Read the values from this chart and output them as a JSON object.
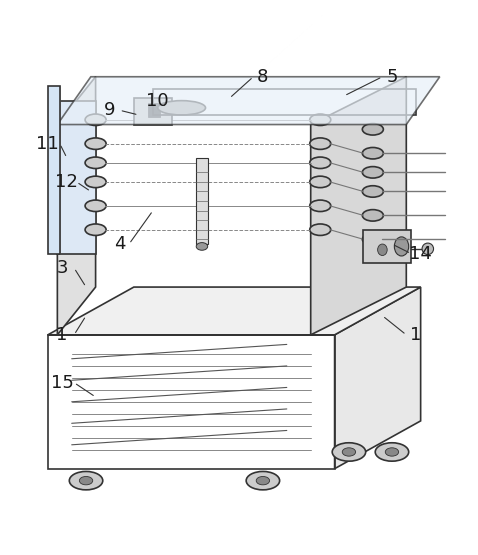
{
  "figure_width": 4.78,
  "figure_height": 5.55,
  "dpi": 100,
  "background_color": "#ffffff",
  "line_color": "#333333",
  "line_width": 1.2,
  "thin_line": 0.6,
  "labels": {
    "1a": [
      0.13,
      0.38,
      "1"
    ],
    "1b": [
      0.87,
      0.38,
      "1"
    ],
    "3": [
      0.13,
      0.52,
      "3"
    ],
    "4": [
      0.25,
      0.57,
      "4"
    ],
    "5": [
      0.82,
      0.92,
      "5"
    ],
    "8": [
      0.55,
      0.92,
      "8"
    ],
    "9": [
      0.23,
      0.85,
      "9"
    ],
    "10": [
      0.33,
      0.87,
      "10"
    ],
    "11": [
      0.1,
      0.78,
      "11"
    ],
    "12": [
      0.14,
      0.7,
      "12"
    ],
    "14": [
      0.88,
      0.55,
      "14"
    ],
    "15": [
      0.13,
      0.28,
      "15"
    ]
  },
  "label_fontsize": 13,
  "label_color": "#1a1a1a"
}
